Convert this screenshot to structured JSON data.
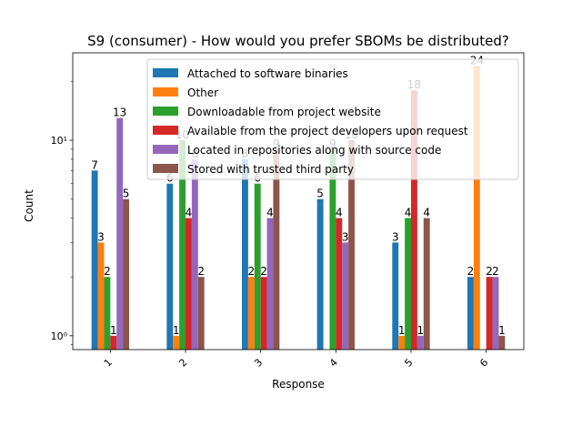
{
  "chart_data": {
    "type": "bar",
    "title": "S9 (consumer) - How would you prefer SBOMs be distributed?",
    "xlabel": "Response",
    "ylabel": "Count",
    "yscale": "log",
    "ylim": [
      0.85,
      28
    ],
    "y_ticks": [
      {
        "value": 1,
        "label": "10⁰"
      },
      {
        "value": 10,
        "label": "10¹"
      }
    ],
    "grid": false,
    "legend_position": "top-center",
    "categories": [
      "1",
      "2",
      "3",
      "4",
      "5",
      "6"
    ],
    "series": [
      {
        "name": "Attached to software binaries",
        "color": "#1f77b4",
        "values": [
          7,
          6,
          8,
          5,
          3,
          2
        ]
      },
      {
        "name": "Other",
        "color": "#ff7f0e",
        "values": [
          3,
          1,
          2,
          null,
          1,
          24
        ]
      },
      {
        "name": "Downloadable from project website",
        "color": "#2ca02c",
        "values": [
          2,
          10,
          6,
          9,
          4,
          null
        ]
      },
      {
        "name": "Available from the project developers upon request",
        "color": "#d62728",
        "values": [
          1,
          4,
          2,
          4,
          18,
          2
        ]
      },
      {
        "name": "Located in repositories along with source code",
        "color": "#9467bd",
        "values": [
          13,
          8,
          4,
          3,
          1,
          2
        ]
      },
      {
        "name": "Stored with trusted third party",
        "color": "#8c564b",
        "values": [
          5,
          2,
          9,
          10,
          4,
          1
        ]
      }
    ]
  }
}
